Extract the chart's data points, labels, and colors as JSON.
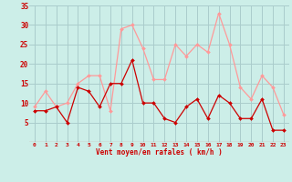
{
  "x": [
    0,
    1,
    2,
    3,
    4,
    5,
    6,
    7,
    8,
    9,
    10,
    11,
    12,
    13,
    14,
    15,
    16,
    17,
    18,
    19,
    20,
    21,
    22,
    23
  ],
  "wind_avg": [
    8,
    8,
    9,
    5,
    14,
    13,
    9,
    15,
    15,
    21,
    10,
    10,
    6,
    5,
    9,
    11,
    6,
    12,
    10,
    6,
    6,
    11,
    3,
    3
  ],
  "wind_gust": [
    9,
    13,
    9,
    10,
    15,
    17,
    17,
    8,
    29,
    30,
    24,
    16,
    16,
    25,
    22,
    25,
    23,
    33,
    25,
    14,
    11,
    17,
    14,
    7
  ],
  "color_avg": "#cc0000",
  "color_gust": "#ff9999",
  "bg_color": "#cceee8",
  "grid_color": "#aacccc",
  "xlabel": "Vent moyen/en rafales ( km/h )",
  "xlabel_color": "#cc0000",
  "tick_color": "#cc0000",
  "ylim": [
    0,
    35
  ],
  "yticks": [
    0,
    5,
    10,
    15,
    20,
    25,
    30,
    35
  ],
  "xticks": [
    0,
    1,
    2,
    3,
    4,
    5,
    6,
    7,
    8,
    9,
    10,
    11,
    12,
    13,
    14,
    15,
    16,
    17,
    18,
    19,
    20,
    21,
    22,
    23
  ]
}
